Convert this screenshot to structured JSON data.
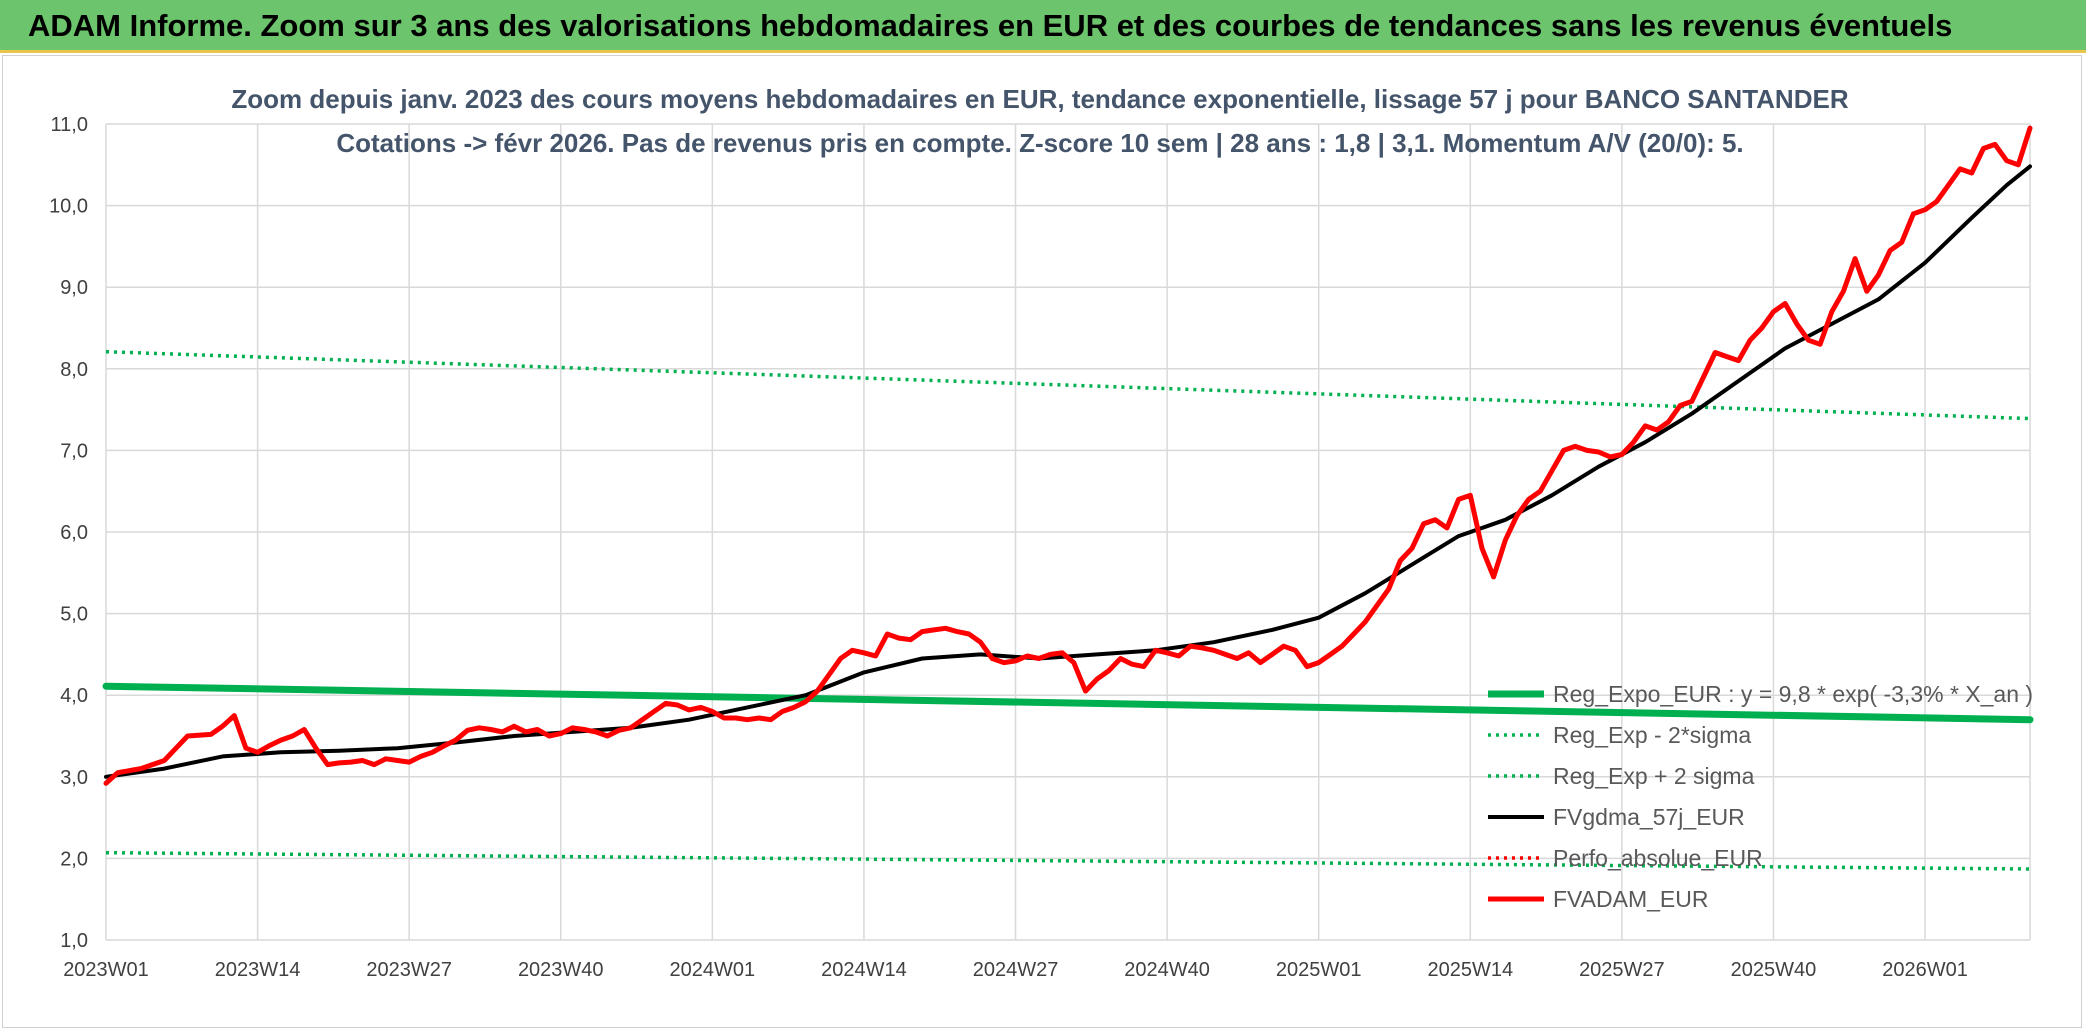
{
  "header": {
    "title": "ADAM Informe. Zoom sur 3 ans des valorisations hebdomadaires en EUR et des courbes de tendances sans les revenus éventuels"
  },
  "colors": {
    "banner": "#6cc46c",
    "reg_expo": "#00b050",
    "fvgdma": "#000000",
    "fvadam": "#ff0000",
    "perfo": "#ff0000",
    "grid": "#d9d9d9"
  },
  "chart_data": {
    "type": "line",
    "title_lines": [
      "Zoom depuis janv. 2023 des cours moyens hebdomadaires en EUR, tendance exponentielle, lissage 57 j pour BANCO SANTANDER",
      "Cotations -> févr 2026. Pas de revenus pris en compte. Z-score 10 sem | 28 ans : 1,8 | 3,1. Momentum A/V (20/0): 5."
    ],
    "ylim": [
      1.0,
      11.0
    ],
    "y_ticks": [
      "1,0",
      "2,0",
      "3,0",
      "4,0",
      "5,0",
      "6,0",
      "7,0",
      "8,0",
      "9,0",
      "10,0",
      "11,0"
    ],
    "x_tick_labels": [
      "2023W01",
      "2023W14",
      "2023W27",
      "2023W40",
      "2024W01",
      "2024W14",
      "2024W27",
      "2024W40",
      "2025W01",
      "2025W14",
      "2025W27",
      "2025W40",
      "2026W01"
    ],
    "x_tick_index": [
      0,
      13,
      26,
      39,
      52,
      65,
      78,
      91,
      104,
      117,
      130,
      143,
      156
    ],
    "x_count": 166,
    "grid": true,
    "legend_position": "bottom-right",
    "legend": [
      "Reg_Expo_EUR : y = 9,8 * exp( -3,3% *  X_an )",
      "Reg_Exp - 2*sigma",
      "Reg_Exp + 2 sigma",
      "FVgdma_57j_EUR",
      "Perfo_absolue_EUR",
      "FVADAM_EUR"
    ],
    "series": [
      {
        "name": "Reg_Expo_EUR : y = 9,8 * exp( -3,3% *  X_an )",
        "style": "solid-thick",
        "color": "#00b050",
        "points": [
          [
            0,
            4.11
          ],
          [
            165,
            3.7
          ]
        ]
      },
      {
        "name": "Reg_Exp - 2*sigma",
        "style": "dotted",
        "color": "#00b050",
        "points": [
          [
            0,
            2.07
          ],
          [
            165,
            1.87
          ]
        ]
      },
      {
        "name": "Reg_Exp + 2 sigma",
        "style": "dotted",
        "color": "#00b050",
        "points": [
          [
            0,
            8.21
          ],
          [
            165,
            7.39
          ]
        ]
      },
      {
        "name": "FVgdma_57j_EUR",
        "style": "solid",
        "color": "#000000",
        "points": [
          [
            0,
            3.0
          ],
          [
            5,
            3.1
          ],
          [
            10,
            3.25
          ],
          [
            15,
            3.3
          ],
          [
            20,
            3.32
          ],
          [
            25,
            3.35
          ],
          [
            30,
            3.42
          ],
          [
            35,
            3.5
          ],
          [
            40,
            3.55
          ],
          [
            45,
            3.6
          ],
          [
            50,
            3.7
          ],
          [
            55,
            3.85
          ],
          [
            60,
            4.0
          ],
          [
            65,
            4.28
          ],
          [
            70,
            4.45
          ],
          [
            75,
            4.5
          ],
          [
            80,
            4.45
          ],
          [
            85,
            4.5
          ],
          [
            90,
            4.55
          ],
          [
            95,
            4.65
          ],
          [
            100,
            4.8
          ],
          [
            104,
            4.95
          ],
          [
            108,
            5.25
          ],
          [
            112,
            5.6
          ],
          [
            116,
            5.95
          ],
          [
            120,
            6.15
          ],
          [
            124,
            6.45
          ],
          [
            128,
            6.8
          ],
          [
            132,
            7.1
          ],
          [
            136,
            7.45
          ],
          [
            140,
            7.85
          ],
          [
            144,
            8.25
          ],
          [
            148,
            8.55
          ],
          [
            152,
            8.85
          ],
          [
            156,
            9.3
          ],
          [
            160,
            9.85
          ],
          [
            163,
            10.25
          ],
          [
            165,
            10.48
          ]
        ]
      },
      {
        "name": "FVADAM_EUR",
        "style": "solid-thick",
        "color": "#ff0000",
        "points": [
          [
            0,
            2.92
          ],
          [
            1,
            3.05
          ],
          [
            3,
            3.1
          ],
          [
            5,
            3.2
          ],
          [
            6,
            3.35
          ],
          [
            7,
            3.5
          ],
          [
            9,
            3.52
          ],
          [
            10,
            3.62
          ],
          [
            11,
            3.75
          ],
          [
            12,
            3.35
          ],
          [
            13,
            3.3
          ],
          [
            14,
            3.38
          ],
          [
            15,
            3.45
          ],
          [
            16,
            3.5
          ],
          [
            17,
            3.58
          ],
          [
            18,
            3.35
          ],
          [
            19,
            3.15
          ],
          [
            20,
            3.17
          ],
          [
            21,
            3.18
          ],
          [
            22,
            3.2
          ],
          [
            23,
            3.15
          ],
          [
            24,
            3.22
          ],
          [
            25,
            3.2
          ],
          [
            26,
            3.18
          ],
          [
            27,
            3.25
          ],
          [
            28,
            3.3
          ],
          [
            29,
            3.38
          ],
          [
            30,
            3.45
          ],
          [
            31,
            3.57
          ],
          [
            32,
            3.6
          ],
          [
            33,
            3.58
          ],
          [
            34,
            3.55
          ],
          [
            35,
            3.62
          ],
          [
            36,
            3.55
          ],
          [
            37,
            3.58
          ],
          [
            38,
            3.5
          ],
          [
            39,
            3.53
          ],
          [
            40,
            3.6
          ],
          [
            41,
            3.58
          ],
          [
            42,
            3.55
          ],
          [
            43,
            3.5
          ],
          [
            44,
            3.57
          ],
          [
            45,
            3.6
          ],
          [
            46,
            3.7
          ],
          [
            47,
            3.8
          ],
          [
            48,
            3.9
          ],
          [
            49,
            3.88
          ],
          [
            50,
            3.82
          ],
          [
            51,
            3.85
          ],
          [
            52,
            3.8
          ],
          [
            53,
            3.72
          ],
          [
            54,
            3.72
          ],
          [
            55,
            3.7
          ],
          [
            56,
            3.72
          ],
          [
            57,
            3.7
          ],
          [
            58,
            3.8
          ],
          [
            59,
            3.85
          ],
          [
            60,
            3.92
          ],
          [
            61,
            4.05
          ],
          [
            62,
            4.25
          ],
          [
            63,
            4.45
          ],
          [
            64,
            4.55
          ],
          [
            65,
            4.52
          ],
          [
            66,
            4.48
          ],
          [
            67,
            4.75
          ],
          [
            68,
            4.7
          ],
          [
            69,
            4.68
          ],
          [
            70,
            4.78
          ],
          [
            71,
            4.8
          ],
          [
            72,
            4.82
          ],
          [
            73,
            4.78
          ],
          [
            74,
            4.75
          ],
          [
            75,
            4.65
          ],
          [
            76,
            4.45
          ],
          [
            77,
            4.4
          ],
          [
            78,
            4.42
          ],
          [
            79,
            4.48
          ],
          [
            80,
            4.45
          ],
          [
            81,
            4.5
          ],
          [
            82,
            4.52
          ],
          [
            83,
            4.4
          ],
          [
            84,
            4.05
          ],
          [
            85,
            4.2
          ],
          [
            86,
            4.3
          ],
          [
            87,
            4.45
          ],
          [
            88,
            4.38
          ],
          [
            89,
            4.35
          ],
          [
            90,
            4.55
          ],
          [
            91,
            4.52
          ],
          [
            92,
            4.48
          ],
          [
            93,
            4.6
          ],
          [
            94,
            4.58
          ],
          [
            95,
            4.55
          ],
          [
            96,
            4.5
          ],
          [
            97,
            4.45
          ],
          [
            98,
            4.52
          ],
          [
            99,
            4.4
          ],
          [
            100,
            4.5
          ],
          [
            101,
            4.6
          ],
          [
            102,
            4.55
          ],
          [
            103,
            4.35
          ],
          [
            104,
            4.4
          ],
          [
            105,
            4.5
          ],
          [
            106,
            4.6
          ],
          [
            107,
            4.75
          ],
          [
            108,
            4.9
          ],
          [
            109,
            5.1
          ],
          [
            110,
            5.3
          ],
          [
            111,
            5.65
          ],
          [
            112,
            5.8
          ],
          [
            113,
            6.1
          ],
          [
            114,
            6.15
          ],
          [
            115,
            6.05
          ],
          [
            116,
            6.4
          ],
          [
            117,
            6.45
          ],
          [
            118,
            5.8
          ],
          [
            119,
            5.45
          ],
          [
            120,
            5.9
          ],
          [
            121,
            6.2
          ],
          [
            122,
            6.4
          ],
          [
            123,
            6.5
          ],
          [
            124,
            6.75
          ],
          [
            125,
            7.0
          ],
          [
            126,
            7.05
          ],
          [
            127,
            7.0
          ],
          [
            128,
            6.98
          ],
          [
            129,
            6.92
          ],
          [
            130,
            6.95
          ],
          [
            131,
            7.1
          ],
          [
            132,
            7.3
          ],
          [
            133,
            7.25
          ],
          [
            134,
            7.35
          ],
          [
            135,
            7.55
          ],
          [
            136,
            7.6
          ],
          [
            137,
            7.9
          ],
          [
            138,
            8.2
          ],
          [
            139,
            8.15
          ],
          [
            140,
            8.1
          ],
          [
            141,
            8.35
          ],
          [
            142,
            8.5
          ],
          [
            143,
            8.7
          ],
          [
            144,
            8.8
          ],
          [
            145,
            8.55
          ],
          [
            146,
            8.35
          ],
          [
            147,
            8.3
          ],
          [
            148,
            8.7
          ],
          [
            149,
            8.95
          ],
          [
            150,
            9.35
          ],
          [
            151,
            8.95
          ],
          [
            152,
            9.15
          ],
          [
            153,
            9.45
          ],
          [
            154,
            9.55
          ],
          [
            155,
            9.9
          ],
          [
            156,
            9.95
          ],
          [
            157,
            10.05
          ],
          [
            158,
            10.25
          ],
          [
            159,
            10.45
          ],
          [
            160,
            10.4
          ],
          [
            161,
            10.7
          ],
          [
            162,
            10.75
          ],
          [
            163,
            10.55
          ],
          [
            164,
            10.5
          ],
          [
            165,
            10.95
          ]
        ]
      }
    ]
  }
}
